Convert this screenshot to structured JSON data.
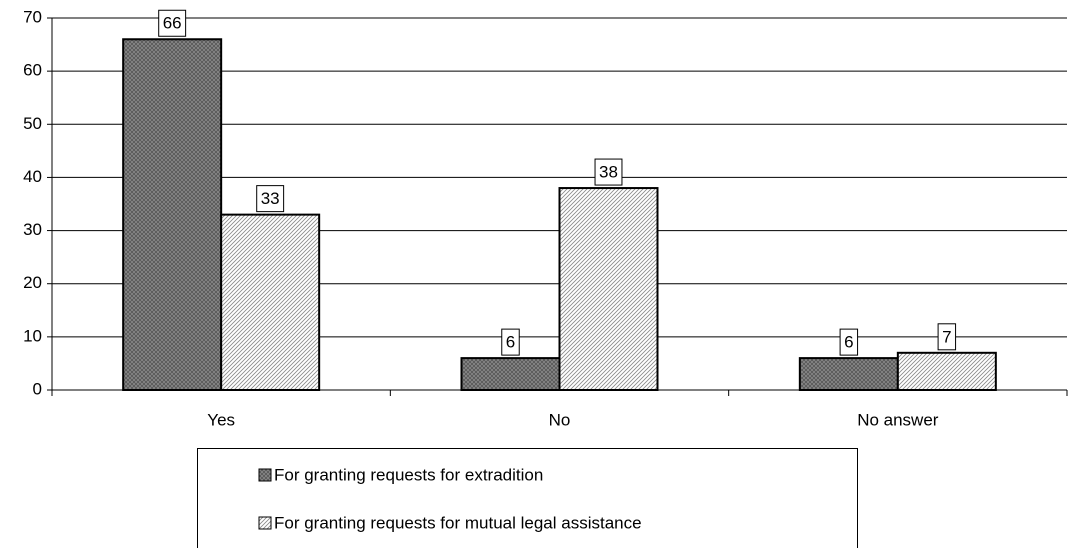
{
  "chart_data": {
    "type": "bar",
    "categories": [
      "Yes",
      "No",
      "No answer"
    ],
    "series": [
      {
        "name": "For granting requests for extradition",
        "color": "#8a8a8a",
        "values": [
          66,
          6,
          6
        ]
      },
      {
        "name": "For granting requests for mutual legal assistance",
        "color": "#e6e6e6",
        "values": [
          33,
          38,
          7
        ]
      }
    ],
    "ylim": [
      0,
      70
    ],
    "yticks": [
      0,
      10,
      20,
      30,
      40,
      50,
      60,
      70
    ],
    "grid": true,
    "legend": "bottom"
  }
}
